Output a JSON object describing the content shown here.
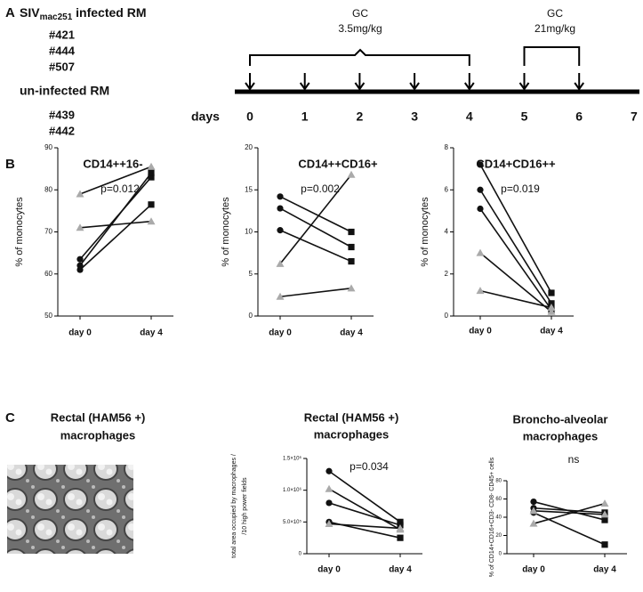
{
  "panel_a": {
    "letter": "A",
    "infected_title": {
      "main": "SIV",
      "sub": "mac251",
      "rest": " infected RM"
    },
    "infected": [
      "#421",
      "#444",
      "#507"
    ],
    "uninfected_title": "un-infected RM",
    "uninfected": [
      "#439",
      "#442"
    ],
    "days_label": "days",
    "days": [
      0,
      1,
      2,
      3,
      4,
      5,
      6,
      7
    ],
    "doses": [
      {
        "name": "GC",
        "amount": "3.5mg/kg"
      },
      {
        "name": "GC",
        "amount": "21mg/kg"
      }
    ]
  },
  "panel_b": {
    "letter": "B"
  },
  "panel_c": {
    "letter": "C",
    "image_title": [
      "Rectal  (HAM56 +)",
      "macrophages"
    ]
  },
  "chart_data": [
    {
      "type": "line",
      "title": [
        "CD14++16-"
      ],
      "annotation": "p=0.012",
      "y_label": [
        "% of monocytes"
      ],
      "categories": [
        "day 0",
        "day 4"
      ],
      "ylim": [
        50,
        90
      ],
      "yticks": [
        50,
        60,
        70,
        80,
        90
      ],
      "series": [
        {
          "color": "#aaaaaa",
          "markers": [
            "triangle",
            "triangle"
          ],
          "values": [
            79,
            85.5
          ]
        },
        {
          "color": "#aaaaaa",
          "markers": [
            "triangle",
            "triangle"
          ],
          "values": [
            71,
            72.5
          ]
        },
        {
          "color": "#111111",
          "markers": [
            "circle",
            "square"
          ],
          "values": [
            63.5,
            83
          ]
        },
        {
          "color": "#111111",
          "markers": [
            "circle",
            "square"
          ],
          "values": [
            62,
            84
          ]
        },
        {
          "color": "#111111",
          "markers": [
            "circle",
            "square"
          ],
          "values": [
            61,
            76.5
          ]
        }
      ]
    },
    {
      "type": "line",
      "title": [
        "CD14++CD16+"
      ],
      "annotation": "p=0.002",
      "y_label": [
        "% of monocytes"
      ],
      "categories": [
        "day 0",
        "day 4"
      ],
      "ylim": [
        0,
        20
      ],
      "yticks": [
        0,
        5,
        10,
        15,
        20
      ],
      "series": [
        {
          "color": "#111111",
          "markers": [
            "circle",
            "square"
          ],
          "values": [
            14.2,
            10
          ]
        },
        {
          "color": "#111111",
          "markers": [
            "circle",
            "square"
          ],
          "values": [
            12.8,
            8.2
          ]
        },
        {
          "color": "#111111",
          "markers": [
            "circle",
            "square"
          ],
          "values": [
            10.2,
            6.5
          ]
        },
        {
          "color": "#aaaaaa",
          "markers": [
            "triangle",
            "triangle"
          ],
          "values": [
            6.2,
            16.8
          ]
        },
        {
          "color": "#aaaaaa",
          "markers": [
            "triangle",
            "triangle"
          ],
          "values": [
            2.3,
            3.3
          ]
        }
      ]
    },
    {
      "type": "line",
      "title": [
        "CD14+CD16++"
      ],
      "annotation": "p=0.019",
      "y_label": [
        "% of monocytes"
      ],
      "categories": [
        "day 0",
        "day 4"
      ],
      "ylim": [
        0,
        8
      ],
      "yticks": [
        0,
        2,
        4,
        6,
        8
      ],
      "series": [
        {
          "color": "#111111",
          "markers": [
            "circle",
            "square"
          ],
          "values": [
            7.2,
            1.1
          ]
        },
        {
          "color": "#111111",
          "markers": [
            "circle",
            "square"
          ],
          "values": [
            6,
            0.6
          ]
        },
        {
          "color": "#111111",
          "markers": [
            "circle",
            "square"
          ],
          "values": [
            5.1,
            0.3
          ]
        },
        {
          "color": "#aaaaaa",
          "markers": [
            "triangle",
            "triangle"
          ],
          "values": [
            3,
            0.2
          ]
        },
        {
          "color": "#aaaaaa",
          "markers": [
            "triangle",
            "triangle"
          ],
          "values": [
            1.2,
            0.4
          ]
        }
      ]
    },
    {
      "type": "line",
      "title": [
        "Rectal  (HAM56 +)",
        "macrophages"
      ],
      "annotation": "p=0.034",
      "y_label": [
        "total  area occupied by macrophages /",
        "/10 high power fields"
      ],
      "categories": [
        "day 0",
        "day 4"
      ],
      "ylim": [
        0,
        1500000
      ],
      "yticks": [
        0,
        {
          "value": 500000,
          "label": "5.0×10⁵"
        },
        {
          "value": 1000000,
          "label": "1.0×10⁶"
        },
        {
          "value": 1500000,
          "label": "1.5×10⁶"
        }
      ],
      "series": [
        {
          "color": "#111111",
          "markers": [
            "circle",
            "square"
          ],
          "values": [
            1300000,
            500000
          ]
        },
        {
          "color": "#aaaaaa",
          "markers": [
            "triangle",
            "triangle"
          ],
          "values": [
            1020000,
            380000
          ]
        },
        {
          "color": "#111111",
          "markers": [
            "circle",
            "square"
          ],
          "values": [
            800000,
            450000
          ]
        },
        {
          "color": "#111111",
          "markers": [
            "circle",
            "square"
          ],
          "values": [
            500000,
            250000
          ]
        },
        {
          "color": "#aaaaaa",
          "markers": [
            "triangle",
            "triangle"
          ],
          "values": [
            470000,
            400000
          ]
        }
      ]
    },
    {
      "type": "line",
      "title": [
        "Broncho-alveolar",
        "macrophages"
      ],
      "annotation": "ns",
      "y_label": [
        "% of CD14+CD16+CD3- CD8- CD45+ cells"
      ],
      "categories": [
        "day 0",
        "day 4"
      ],
      "ylim": [
        0,
        80
      ],
      "yticks": [
        0,
        20,
        40,
        60,
        80
      ],
      "series": [
        {
          "color": "#111111",
          "markers": [
            "circle",
            "square"
          ],
          "values": [
            57,
            37
          ]
        },
        {
          "color": "#111111",
          "markers": [
            "circle",
            "square"
          ],
          "values": [
            50,
            45
          ]
        },
        {
          "color": "#111111",
          "markers": [
            "circle",
            "square"
          ],
          "values": [
            45,
            10
          ]
        },
        {
          "color": "#aaaaaa",
          "markers": [
            "triangle",
            "triangle"
          ],
          "values": [
            33,
            55
          ]
        },
        {
          "color": "#aaaaaa",
          "markers": [
            "triangle",
            "triangle"
          ],
          "values": [
            47,
            43
          ]
        }
      ]
    }
  ]
}
